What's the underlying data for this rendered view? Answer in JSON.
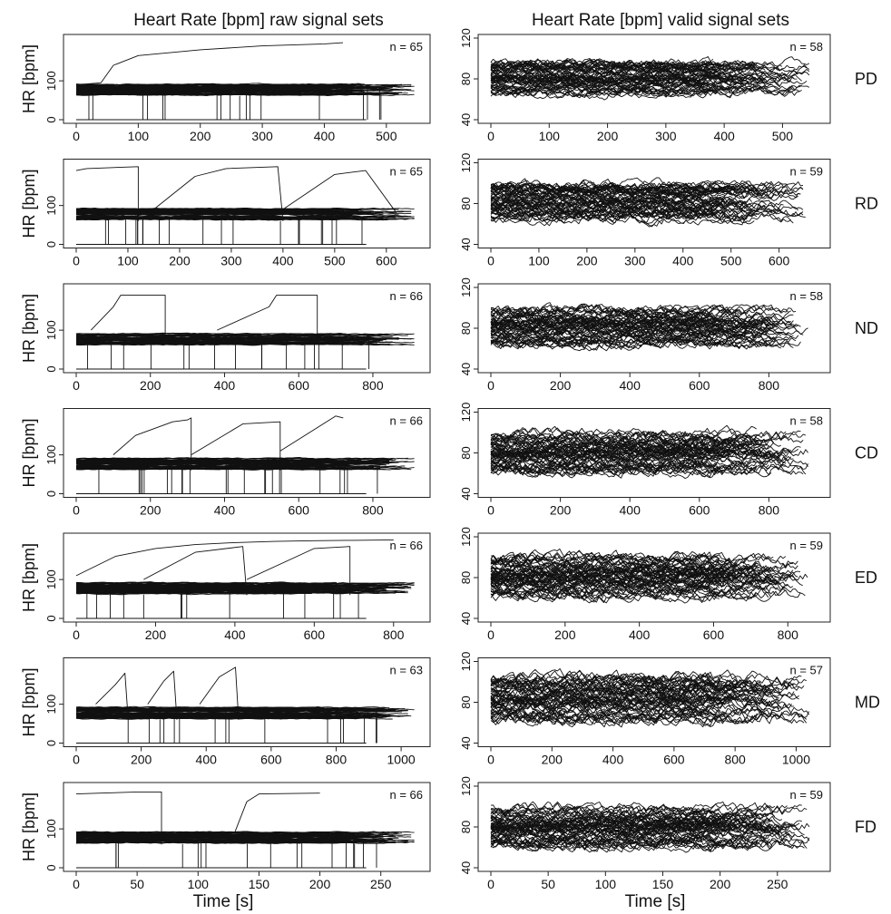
{
  "titles": {
    "left": "Heart Rate [bpm] raw signal sets",
    "right": "Heart Rate [bpm] valid signal sets"
  },
  "xlabel": "Time [s]",
  "ylabel": "HR [bpm]",
  "chart_data": [
    {
      "type": "line",
      "panel": "raw",
      "group": "PD",
      "n_label": "n = 65",
      "xticks": [
        0,
        100,
        200,
        300,
        400,
        500
      ],
      "xlim": [
        0,
        550
      ],
      "yticks": [
        0,
        100
      ],
      "ylim": [
        0,
        210
      ],
      "series_count": 65,
      "max_duration": 550,
      "dense_band": [
        55,
        100
      ],
      "dropouts_to": 0,
      "example_traces": [
        {
          "x": [
            0,
            40,
            60,
            100,
            200,
            300,
            400,
            430
          ],
          "y": [
            90,
            95,
            140,
            165,
            180,
            190,
            195,
            198
          ]
        }
      ]
    },
    {
      "type": "line",
      "panel": "raw",
      "group": "RD",
      "n_label": "n = 65",
      "xticks": [
        0,
        100,
        200,
        300,
        400,
        500,
        600
      ],
      "xlim": [
        0,
        660
      ],
      "yticks": [
        0,
        100
      ],
      "ylim": [
        0,
        210
      ],
      "series_count": 65,
      "max_duration": 660,
      "dense_band": [
        55,
        100
      ],
      "dropouts_to": 0,
      "example_traces": [
        {
          "x": [
            0,
            20,
            120,
            120
          ],
          "y": [
            190,
            195,
            200,
            60
          ]
        },
        {
          "x": [
            150,
            230,
            290,
            390,
            400
          ],
          "y": [
            90,
            175,
            195,
            200,
            60
          ]
        },
        {
          "x": [
            400,
            500,
            530,
            560,
            620
          ],
          "y": [
            90,
            180,
            185,
            190,
            80
          ]
        }
      ]
    },
    {
      "type": "line",
      "panel": "raw",
      "group": "ND",
      "n_label": "n = 66",
      "xticks": [
        0,
        200,
        400,
        600,
        800
      ],
      "xlim": [
        0,
        920
      ],
      "yticks": [
        0,
        100
      ],
      "ylim": [
        0,
        210
      ],
      "series_count": 66,
      "max_duration": 920,
      "dense_band": [
        55,
        100
      ],
      "dropouts_to": 0,
      "example_traces": [
        {
          "x": [
            40,
            100,
            120,
            240,
            240
          ],
          "y": [
            100,
            160,
            190,
            190,
            70
          ]
        },
        {
          "x": [
            380,
            520,
            540,
            550,
            650,
            650
          ],
          "y": [
            100,
            160,
            190,
            190,
            190,
            80
          ]
        }
      ]
    },
    {
      "type": "line",
      "panel": "raw",
      "group": "CD",
      "n_label": "n = 66",
      "xticks": [
        0,
        200,
        400,
        600,
        800
      ],
      "xlim": [
        0,
        920
      ],
      "yticks": [
        0,
        100
      ],
      "ylim": [
        0,
        210
      ],
      "series_count": 66,
      "max_duration": 920,
      "dense_band": [
        55,
        100
      ],
      "dropouts_to": 0,
      "example_traces": [
        {
          "x": [
            100,
            160,
            260,
            300,
            310,
            310
          ],
          "y": [
            100,
            150,
            185,
            190,
            195,
            60
          ]
        },
        {
          "x": [
            310,
            450,
            550,
            550
          ],
          "y": [
            100,
            180,
            185,
            60
          ]
        },
        {
          "x": [
            550,
            650,
            700,
            720
          ],
          "y": [
            110,
            170,
            200,
            195
          ]
        }
      ]
    },
    {
      "type": "line",
      "panel": "raw",
      "group": "ED",
      "n_label": "n = 66",
      "xticks": [
        0,
        200,
        400,
        600,
        800
      ],
      "xlim": [
        0,
        860
      ],
      "yticks": [
        0,
        100
      ],
      "ylim": [
        0,
        210
      ],
      "series_count": 66,
      "max_duration": 860,
      "dense_band": [
        55,
        100
      ],
      "dropouts_to": 0,
      "example_traces": [
        {
          "x": [
            0,
            100,
            200,
            300,
            400,
            500,
            600,
            700,
            800
          ],
          "y": [
            110,
            160,
            180,
            190,
            195,
            198,
            200,
            201,
            202
          ]
        },
        {
          "x": [
            170,
            300,
            420,
            430
          ],
          "y": [
            100,
            170,
            185,
            60
          ]
        },
        {
          "x": [
            430,
            600,
            690,
            690
          ],
          "y": [
            100,
            180,
            185,
            60
          ]
        }
      ]
    },
    {
      "type": "line",
      "panel": "raw",
      "group": "MD",
      "n_label": "n = 63",
      "xticks": [
        0,
        200,
        400,
        600,
        800,
        1000
      ],
      "xlim": [
        0,
        1050
      ],
      "yticks": [
        0,
        100
      ],
      "ylim": [
        0,
        210
      ],
      "series_count": 63,
      "max_duration": 1050,
      "dense_band": [
        55,
        100
      ],
      "dropouts_to": 0,
      "example_traces": [
        {
          "x": [
            60,
            120,
            150,
            160
          ],
          "y": [
            100,
            150,
            180,
            60
          ]
        },
        {
          "x": [
            220,
            270,
            300,
            310
          ],
          "y": [
            100,
            160,
            185,
            60
          ]
        },
        {
          "x": [
            380,
            440,
            480,
            490,
            500
          ],
          "y": [
            100,
            170,
            190,
            195,
            60
          ]
        }
      ]
    },
    {
      "type": "line",
      "panel": "raw",
      "group": "FD",
      "n_label": "n = 66",
      "xticks": [
        0,
        50,
        100,
        150,
        200,
        250
      ],
      "xlim": [
        0,
        280
      ],
      "yticks": [
        0,
        100
      ],
      "ylim": [
        0,
        210
      ],
      "series_count": 66,
      "max_duration": 280,
      "dense_band": [
        55,
        100
      ],
      "dropouts_to": 0,
      "example_traces": [
        {
          "x": [
            0,
            20,
            50,
            70,
            70
          ],
          "y": [
            190,
            192,
            195,
            195,
            60
          ]
        },
        {
          "x": [
            130,
            140,
            150,
            200
          ],
          "y": [
            90,
            170,
            190,
            192
          ]
        }
      ]
    },
    {
      "type": "line",
      "panel": "valid",
      "group": "PD",
      "n_label": "n = 58",
      "xticks": [
        0,
        100,
        200,
        300,
        400,
        500
      ],
      "xlim": [
        0,
        560
      ],
      "yticks": [
        40,
        80,
        120
      ],
      "ylim": [
        40,
        120
      ],
      "series_count": 58,
      "max_duration": 550,
      "dense_band": [
        57,
        105
      ]
    },
    {
      "type": "line",
      "panel": "valid",
      "group": "RD",
      "n_label": "n = 59",
      "xticks": [
        0,
        100,
        200,
        300,
        400,
        500,
        600
      ],
      "xlim": [
        0,
        680
      ],
      "yticks": [
        40,
        80,
        120
      ],
      "ylim": [
        40,
        120
      ],
      "series_count": 59,
      "max_duration": 660,
      "dense_band": [
        55,
        108
      ]
    },
    {
      "type": "line",
      "panel": "valid",
      "group": "ND",
      "n_label": "n = 58",
      "xticks": [
        0,
        200,
        400,
        600,
        800
      ],
      "xlim": [
        0,
        940
      ],
      "yticks": [
        40,
        80,
        120
      ],
      "ylim": [
        40,
        120
      ],
      "series_count": 58,
      "max_duration": 920,
      "dense_band": [
        55,
        108
      ]
    },
    {
      "type": "line",
      "panel": "valid",
      "group": "CD",
      "n_label": "n = 58",
      "xticks": [
        0,
        200,
        400,
        600,
        800
      ],
      "xlim": [
        0,
        940
      ],
      "yticks": [
        40,
        80,
        120
      ],
      "ylim": [
        40,
        120
      ],
      "series_count": 58,
      "max_duration": 920,
      "dense_band": [
        52,
        110
      ]
    },
    {
      "type": "line",
      "panel": "valid",
      "group": "ED",
      "n_label": "n = 59",
      "xticks": [
        0,
        200,
        400,
        600,
        800
      ],
      "xlim": [
        0,
        880
      ],
      "yticks": [
        40,
        80,
        120
      ],
      "ylim": [
        40,
        120
      ],
      "series_count": 59,
      "max_duration": 860,
      "dense_band": [
        52,
        110
      ]
    },
    {
      "type": "line",
      "panel": "valid",
      "group": "MD",
      "n_label": "n = 57",
      "xticks": [
        0,
        200,
        400,
        600,
        800,
        1000
      ],
      "xlim": [
        0,
        1070
      ],
      "yticks": [
        40,
        80,
        120
      ],
      "ylim": [
        40,
        120
      ],
      "series_count": 57,
      "max_duration": 1050,
      "dense_band": [
        52,
        115
      ]
    },
    {
      "type": "line",
      "panel": "valid",
      "group": "FD",
      "n_label": "n = 59",
      "xticks": [
        0,
        50,
        100,
        150,
        200,
        250
      ],
      "xlim": [
        0,
        285
      ],
      "yticks": [
        40,
        80,
        120
      ],
      "ylim": [
        40,
        120
      ],
      "series_count": 59,
      "max_duration": 280,
      "dense_band": [
        52,
        110
      ]
    }
  ]
}
